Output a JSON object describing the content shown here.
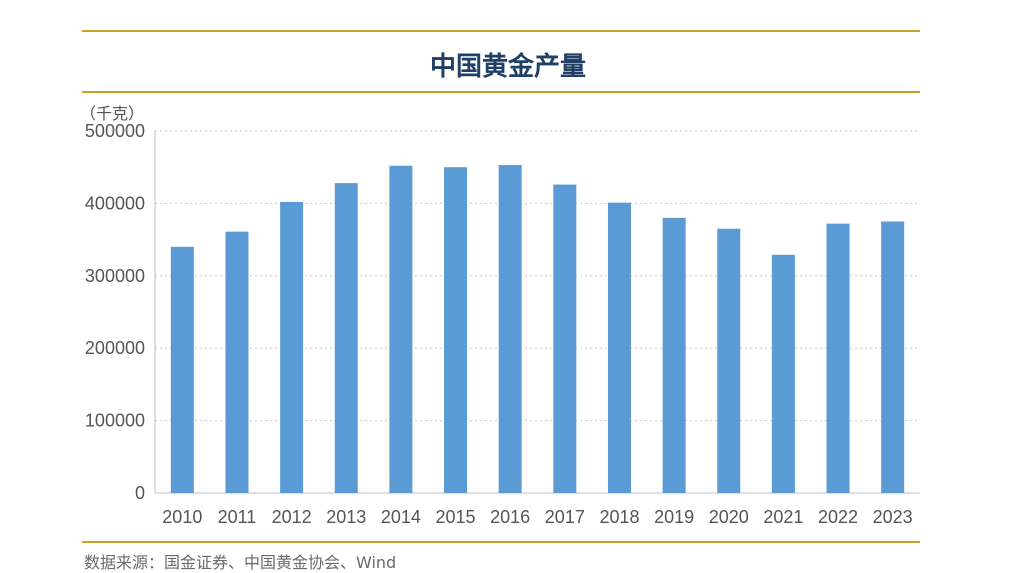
{
  "chart_data": {
    "type": "bar",
    "title": "中国黄金产量",
    "unit": "（千克）",
    "categories": [
      "2010",
      "2011",
      "2012",
      "2013",
      "2014",
      "2015",
      "2016",
      "2017",
      "2018",
      "2019",
      "2020",
      "2021",
      "2022",
      "2023"
    ],
    "values": [
      340000,
      361000,
      402000,
      428000,
      452000,
      450000,
      453000,
      426000,
      401000,
      380000,
      365000,
      329000,
      372000,
      375000
    ],
    "yticks": [
      "0",
      "100000",
      "200000",
      "300000",
      "400000",
      "500000"
    ],
    "ylim": [
      0,
      500000
    ],
    "grid": true,
    "bar_color": "#5b9bd5",
    "source": "数据来源：国金证券、中国黄金协会、Wind"
  }
}
